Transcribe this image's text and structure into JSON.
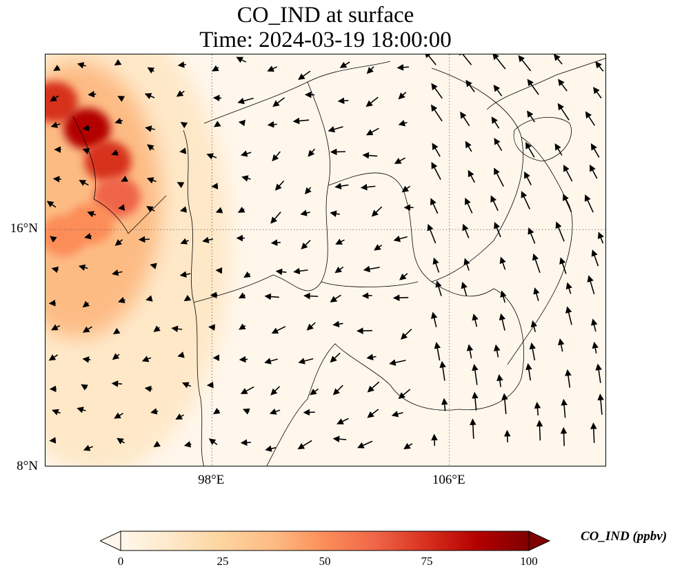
{
  "title": {
    "line1": "CO_IND at surface",
    "line2": "Time: 2024-03-19 18:00:00"
  },
  "map": {
    "extent": {
      "lon_min": 92.4,
      "lon_max": 111.3,
      "lat_min": 8.0,
      "lat_max": 21.9
    },
    "lat_ticks": [
      {
        "value": 16,
        "label": "16°N"
      },
      {
        "value": 8,
        "label": "8°N"
      }
    ],
    "lon_ticks": [
      {
        "value": 98,
        "label": "98°E"
      },
      {
        "value": 106,
        "label": "106°E"
      }
    ],
    "gridline_style": "dotted",
    "field_colormap": "OrRd",
    "plume_hotspots": [
      {
        "lon": 92.7,
        "lat": 20.3,
        "ppbv": 78
      },
      {
        "lon": 93.8,
        "lat": 19.4,
        "ppbv": 85
      },
      {
        "lon": 94.5,
        "lat": 18.3,
        "ppbv": 80
      },
      {
        "lon": 94.8,
        "lat": 17.1,
        "ppbv": 68
      },
      {
        "lon": 93.9,
        "lat": 16.2,
        "ppbv": 55
      },
      {
        "lon": 93.0,
        "lat": 15.8,
        "ppbv": 45
      }
    ],
    "wind_arrows_present": true
  },
  "colorbar": {
    "min": 0,
    "max": 100,
    "ticks": [
      "0",
      "25",
      "50",
      "75",
      "100"
    ],
    "label": "CO_IND (ppbv)",
    "extend": "both",
    "colors": [
      "#fff7ec",
      "#fee8c8",
      "#fdd49e",
      "#fdbb84",
      "#fc8d59",
      "#ef6548",
      "#d7301f",
      "#b30000",
      "#7f0000"
    ]
  }
}
